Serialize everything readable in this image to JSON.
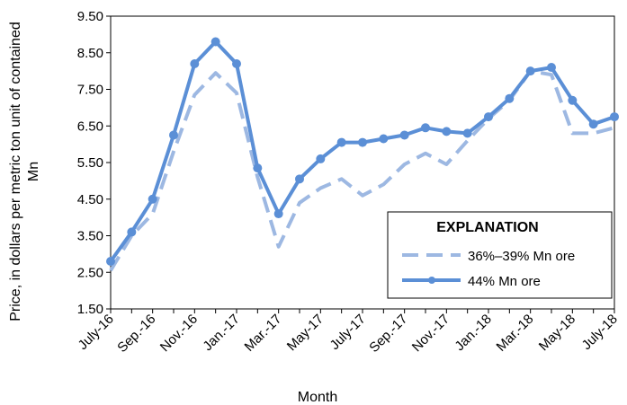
{
  "chart_data": {
    "type": "line",
    "xlabel": "Month",
    "ylabel": "Price, in dollars per metric ton unit of contained Mn",
    "ylim": [
      1.5,
      9.5
    ],
    "yticks": [
      "1.50",
      "2.50",
      "3.50",
      "4.50",
      "5.50",
      "6.50",
      "7.50",
      "8.50",
      "9.50"
    ],
    "x_tick_labels": [
      "July-16",
      "Sep.-16",
      "Nov.-16",
      "Jan.-17",
      "Mar.-17",
      "May-17",
      "July-17",
      "Sep.-17",
      "Nov.-17",
      "Jan.-18",
      "Mar.-18",
      "May-18",
      "July-18"
    ],
    "x": [
      "Jul-16",
      "Aug-16",
      "Sep-16",
      "Oct-16",
      "Nov-16",
      "Dec-16",
      "Jan-17",
      "Feb-17",
      "Mar-17",
      "Apr-17",
      "May-17",
      "Jun-17",
      "Jul-17",
      "Aug-17",
      "Sep-17",
      "Oct-17",
      "Nov-17",
      "Dec-17",
      "Jan-18",
      "Feb-18",
      "Mar-18",
      "Apr-18",
      "May-18",
      "Jun-18",
      "Jul-18"
    ],
    "legend_title": "EXPLANATION",
    "legend_position": "lower-right",
    "grid": false,
    "series": [
      {
        "name": "36%–39% Mn ore",
        "style": "dashed",
        "color": "#9db8e2",
        "values": [
          2.55,
          3.5,
          4.1,
          5.8,
          7.35,
          7.95,
          7.4,
          5.1,
          3.2,
          4.4,
          4.8,
          5.05,
          4.6,
          4.9,
          5.45,
          5.75,
          5.45,
          6.1,
          6.7,
          7.2,
          8.0,
          7.9,
          6.3,
          6.3,
          6.45
        ]
      },
      {
        "name": "44% Mn ore",
        "style": "solid-marker",
        "color": "#5b8fd6",
        "values": [
          2.8,
          3.6,
          4.5,
          6.25,
          8.2,
          8.8,
          8.2,
          5.35,
          4.1,
          5.05,
          5.6,
          6.05,
          6.05,
          6.15,
          6.25,
          6.45,
          6.35,
          6.3,
          6.75,
          7.25,
          8.0,
          8.1,
          7.2,
          6.55,
          6.75
        ]
      }
    ]
  }
}
